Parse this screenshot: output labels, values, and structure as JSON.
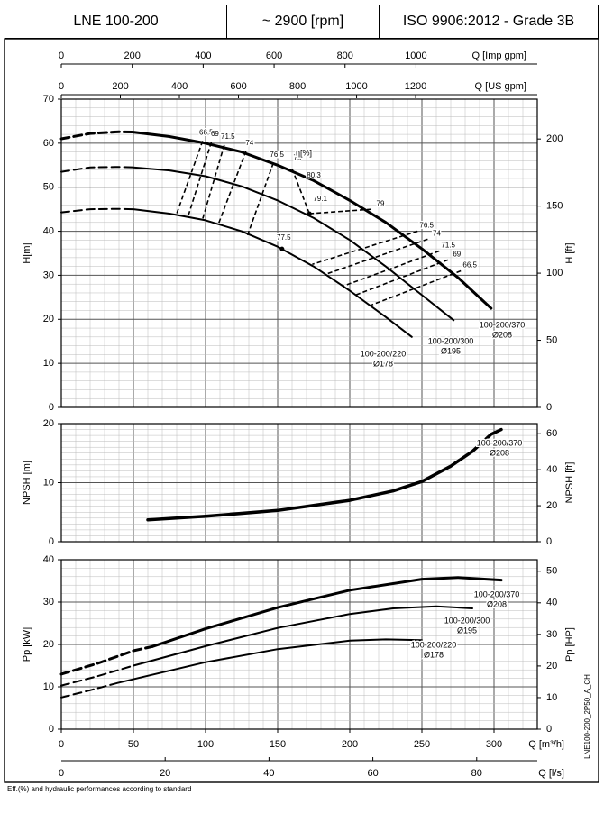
{
  "header": {
    "model": "LNE 100-200",
    "speed": "~ 2900 [rpm]",
    "standard": "ISO 9906:2012 - Grade 3B"
  },
  "footer": {
    "code": "LNE100-200_2P50_A_CH",
    "note": "Eff.(%) and hydraulic performances according to standard"
  },
  "chart_data": [
    {
      "id": "head",
      "type": "line",
      "ylabel": "H[m]",
      "ylabel_right": "H [ft]",
      "ylim": [
        0,
        70
      ],
      "yticks": [
        0,
        10,
        20,
        30,
        40,
        50,
        60,
        70
      ],
      "ylim_right": [
        0,
        229.66
      ],
      "yticks_right": [
        0,
        50,
        100,
        150,
        200
      ],
      "top_axes": [
        {
          "label": "Q [Imp gpm]",
          "lim": [
            0,
            1342
          ],
          "ticks": [
            0,
            200,
            400,
            600,
            800,
            1000
          ]
        },
        {
          "label": "Q [US gpm]",
          "lim": [
            0,
            1612
          ],
          "ticks": [
            0,
            200,
            400,
            600,
            800,
            1000,
            1200
          ]
        }
      ],
      "series": [
        {
          "name": "100-200/370",
          "sub": "Ø208",
          "dashed": [
            [
              0,
              61
            ],
            [
              20,
              62.2
            ],
            [
              40,
              62.6
            ],
            [
              50,
              62.5
            ]
          ],
          "solid": [
            [
              50,
              62.5
            ],
            [
              75,
              61.5
            ],
            [
              100,
              60
            ],
            [
              125,
              58
            ],
            [
              150,
              55
            ],
            [
              175,
              51.5
            ],
            [
              200,
              47
            ],
            [
              225,
              42
            ],
            [
              250,
              36
            ],
            [
              275,
              29.5
            ],
            [
              298,
              22.5
            ]
          ]
        },
        {
          "name": "100-200/300",
          "sub": "Ø195",
          "dashed": [
            [
              0,
              53.5
            ],
            [
              20,
              54.5
            ],
            [
              40,
              54.6
            ],
            [
              50,
              54.5
            ]
          ],
          "solid": [
            [
              50,
              54.5
            ],
            [
              75,
              53.8
            ],
            [
              100,
              52.5
            ],
            [
              125,
              50.2
            ],
            [
              150,
              47
            ],
            [
              175,
              43
            ],
            [
              200,
              38
            ],
            [
              225,
              32
            ],
            [
              250,
              25.5
            ],
            [
              272,
              19.8
            ]
          ]
        },
        {
          "name": "100-200/220",
          "sub": "Ø178",
          "dashed": [
            [
              0,
              44.3
            ],
            [
              20,
              45
            ],
            [
              40,
              45.1
            ],
            [
              50,
              45
            ]
          ],
          "solid": [
            [
              50,
              45
            ],
            [
              75,
              44
            ],
            [
              100,
              42.5
            ],
            [
              125,
              40
            ],
            [
              150,
              36.5
            ],
            [
              175,
              32
            ],
            [
              200,
              26.5
            ],
            [
              225,
              20.5
            ],
            [
              243,
              16
            ]
          ]
        }
      ],
      "efficiency": {
        "label": "η[%]",
        "left": [
          {
            "label": "66.5",
            "top": [
              98,
              60.5
            ],
            "bottom": [
              80,
              44
            ]
          },
          {
            "label": "69",
            "top": [
              104,
              60.2
            ],
            "bottom": [
              88,
              43.5
            ]
          },
          {
            "label": "71.5",
            "top": [
              113,
              59.6
            ],
            "bottom": [
              98,
              42.8
            ]
          },
          {
            "label": "74",
            "top": [
              128,
              58.2
            ],
            "bottom": [
              109,
              41.7
            ]
          },
          {
            "label": "76.5",
            "top": [
              147,
              55.5
            ],
            "bottom": [
              129,
              39
            ]
          }
        ],
        "center": [
          {
            "label": "79",
            "pts": [
              [
                160,
                54.2
              ],
              [
                172,
                44
              ]
            ]
          },
          {
            "label": "80.3"
          },
          {
            "label": "79.1",
            "pts": [
              [
                172,
                44
              ]
            ]
          },
          {
            "label": "77.5",
            "pts": [
              [
                153,
                36
              ]
            ]
          }
        ],
        "right": [
          {
            "label": "79",
            "top": [
              215,
              45
            ],
            "bottom": [
              172,
              44
            ]
          },
          {
            "label": "76.5",
            "top": [
              247,
              40
            ],
            "bottom": [
              174,
              32.5
            ]
          },
          {
            "label": "74",
            "top": [
              254,
              38.2
            ],
            "bottom": [
              183,
              30.2
            ]
          },
          {
            "label": "71.5",
            "top": [
              262,
              35.5
            ],
            "bottom": [
              195,
              27.5
            ]
          },
          {
            "label": "69",
            "top": [
              268,
              33.5
            ],
            "bottom": [
              203,
              25.4
            ]
          },
          {
            "label": "66.5",
            "top": [
              277,
              31
            ],
            "bottom": [
              213,
              23
            ]
          }
        ]
      }
    },
    {
      "id": "npsh",
      "type": "line",
      "ylabel": "NPSH [m]",
      "ylabel_right": "NPSH [ft]",
      "ylim": [
        0,
        20
      ],
      "yticks": [
        0,
        10,
        20
      ],
      "ylim_right": [
        0,
        65.62
      ],
      "yticks_right": [
        0,
        20,
        40,
        60
      ],
      "series": [
        {
          "name": "100-200/370",
          "sub": "Ø208",
          "solid": [
            [
              60,
              3.7
            ],
            [
              100,
              4.3
            ],
            [
              150,
              5.3
            ],
            [
              200,
              7
            ],
            [
              230,
              8.6
            ],
            [
              250,
              10.2
            ],
            [
              270,
              12.8
            ],
            [
              285,
              15.3
            ],
            [
              298,
              18.2
            ],
            [
              305,
              19
            ]
          ]
        }
      ]
    },
    {
      "id": "power",
      "type": "line",
      "ylabel": "Pp [kW]",
      "ylabel_right": "Pp [HP]",
      "ylim": [
        0,
        40
      ],
      "yticks": [
        0,
        10,
        20,
        30,
        40
      ],
      "ylim_right": [
        0,
        53.64
      ],
      "yticks_right": [
        0,
        10,
        20,
        30,
        40,
        50
      ],
      "xlabel": "Q [m³/h]",
      "xlim": [
        0,
        330
      ],
      "xticks": [
        0,
        50,
        100,
        150,
        200,
        250,
        300
      ],
      "xlabel2": "Q [l/s]",
      "xlim2": [
        0,
        91.67
      ],
      "xticks2": [
        20,
        40,
        60,
        80
      ],
      "series": [
        {
          "name": "100-200/370",
          "sub": "Ø208",
          "dashed": [
            [
              0,
              13
            ],
            [
              25,
              15.5
            ],
            [
              50,
              18.5
            ],
            [
              63,
              19.5
            ]
          ],
          "solid": [
            [
              63,
              19.5
            ],
            [
              100,
              23.7
            ],
            [
              150,
              28.7
            ],
            [
              200,
              32.8
            ],
            [
              250,
              35.4
            ],
            [
              275,
              35.8
            ],
            [
              305,
              35.2
            ]
          ]
        },
        {
          "name": "100-200/300",
          "sub": "Ø195",
          "dashed": [
            [
              0,
              10.3
            ],
            [
              25,
              12.5
            ],
            [
              50,
              15
            ]
          ],
          "solid": [
            [
              50,
              15
            ],
            [
              100,
              19.6
            ],
            [
              150,
              23.9
            ],
            [
              200,
              27.2
            ],
            [
              230,
              28.5
            ],
            [
              260,
              29
            ],
            [
              285,
              28.5
            ]
          ]
        },
        {
          "name": "100-200/220",
          "sub": "Ø178",
          "dashed": [
            [
              0,
              7.5
            ],
            [
              20,
              9.2
            ],
            [
              40,
              11
            ]
          ],
          "solid": [
            [
              40,
              11
            ],
            [
              100,
              15.8
            ],
            [
              150,
              18.9
            ],
            [
              200,
              20.9
            ],
            [
              225,
              21.2
            ],
            [
              250,
              21
            ]
          ]
        }
      ]
    }
  ]
}
